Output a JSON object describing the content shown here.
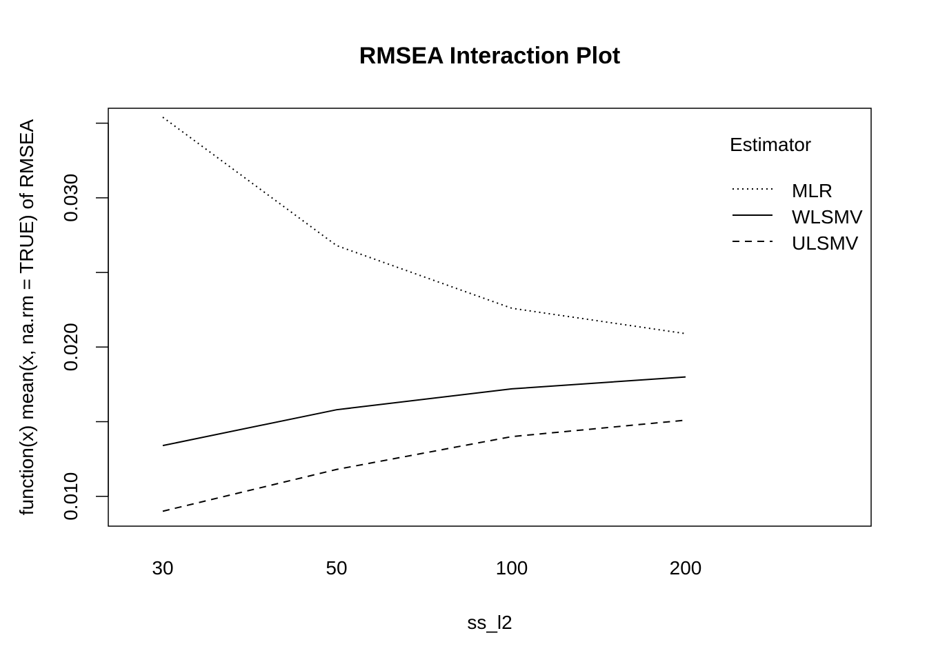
{
  "chart_data": {
    "type": "line",
    "title": "RMSEA Interaction Plot",
    "xlabel": "ss_l2",
    "ylabel": "function(x) mean(x, na.rm = TRUE) of  RMSEA",
    "categories": [
      "30",
      "50",
      "100",
      "200"
    ],
    "ylim": [
      0.008,
      0.036
    ],
    "y_ticks": [
      0.01,
      0.015,
      0.02,
      0.025,
      0.03,
      0.035
    ],
    "y_tick_labels": [
      "0.010",
      "",
      "0.020",
      "",
      "0.030",
      ""
    ],
    "legend": {
      "title": "Estimator",
      "placement": "top-right"
    },
    "series": [
      {
        "name": "MLR",
        "dash": "dotted",
        "values": [
          0.0354,
          0.0268,
          0.0226,
          0.0209
        ]
      },
      {
        "name": "WLSMV",
        "dash": "solid",
        "values": [
          0.0134,
          0.0158,
          0.0172,
          0.018
        ]
      },
      {
        "name": "ULSMV",
        "dash": "dashed",
        "values": [
          0.009,
          0.0118,
          0.014,
          0.0151
        ]
      }
    ],
    "grid": false
  }
}
